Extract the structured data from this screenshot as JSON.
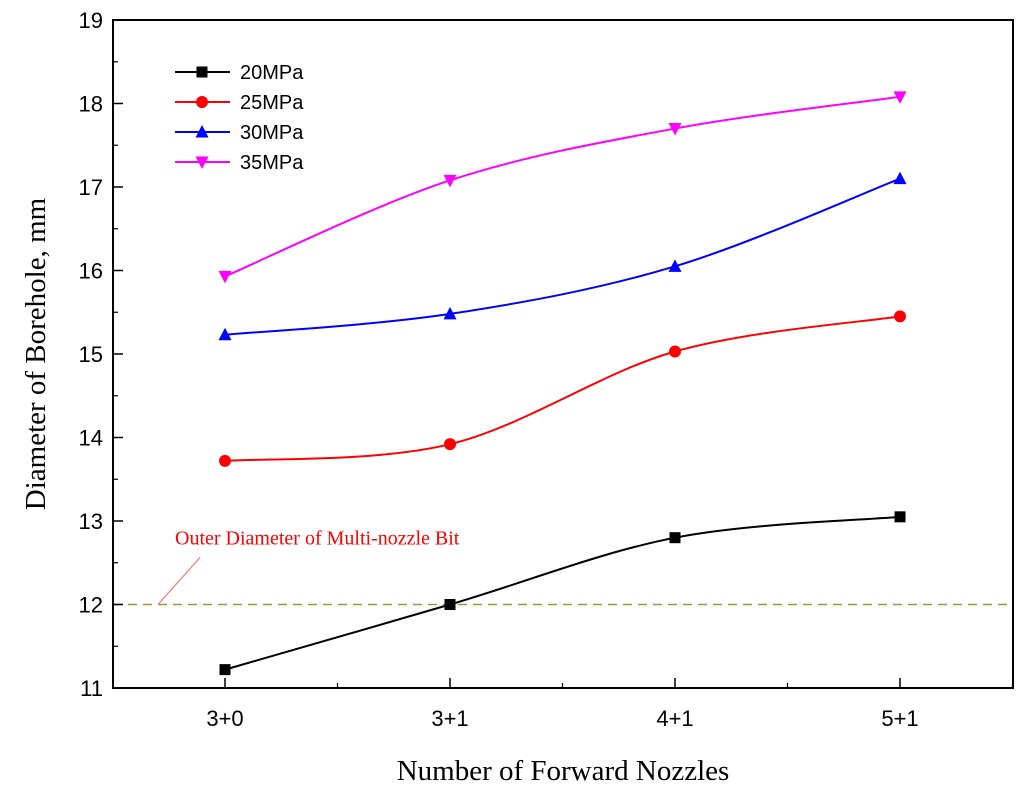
{
  "chart_data": {
    "type": "line",
    "xlabel": "Number of Forward Nozzles",
    "ylabel": "Diameter of Borehole, mm",
    "categories": [
      "3+0",
      "3+1",
      "4+1",
      "5+1"
    ],
    "ylim": [
      11,
      19
    ],
    "yticks": [
      11,
      12,
      13,
      14,
      15,
      16,
      17,
      18,
      19
    ],
    "grid": false,
    "legend_position": "top-left",
    "series": [
      {
        "name": "20MPa",
        "color": "#000000",
        "marker": "square",
        "values": [
          11.22,
          12.0,
          12.8,
          13.05
        ]
      },
      {
        "name": "25MPa",
        "color": "#ff0000",
        "marker": "circle",
        "values": [
          13.72,
          13.92,
          15.03,
          15.45
        ]
      },
      {
        "name": "30MPa",
        "color": "#0000ff",
        "marker": "triangle-up",
        "values": [
          15.23,
          15.48,
          16.05,
          17.1
        ]
      },
      {
        "name": "35MPa",
        "color": "#ff00ff",
        "marker": "triangle-down",
        "values": [
          15.93,
          17.08,
          17.7,
          18.08
        ]
      }
    ],
    "reference_line": {
      "value": 12,
      "color": "#9a9a2e",
      "style": "dashed",
      "label": "Outer Diameter of Multi-nozzle Bit",
      "label_color": "#ff0000"
    }
  }
}
